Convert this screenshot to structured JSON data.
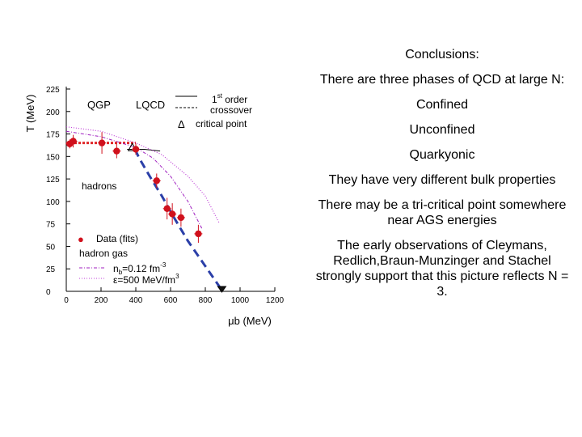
{
  "chart_data": {
    "type": "scatter",
    "xlabel": "μb (MeV)",
    "ylabel": "T (MeV)",
    "xlim": [
      0,
      1200
    ],
    "ylim": [
      0,
      225
    ],
    "xticks": [
      0,
      200,
      400,
      600,
      800,
      1000,
      1200
    ],
    "yticks": [
      0,
      25,
      50,
      75,
      100,
      125,
      150,
      175,
      200,
      225
    ],
    "region_labels": {
      "qgp": "QGP",
      "hadrons": "hadrons"
    },
    "legend_lqcd": {
      "title": "LQCD",
      "items": [
        {
          "label_main": "1",
          "label_sup": "st",
          "label_rest": " order"
        },
        {
          "label_main": "crossover"
        },
        {
          "marker": "Δ",
          "label_main": "critical point"
        }
      ]
    },
    "legend_data": {
      "marker": "●",
      "items": [
        {
          "label": "Data (fits)"
        },
        {
          "label": "hadron gas"
        },
        {
          "label": "nb=0.12 fm-3",
          "main": "n",
          "sub": "b",
          "mid": "=0.12 fm",
          "sup": "-3"
        },
        {
          "label": "ε=500 MeV/fm3",
          "main": "ε=500 MeV/fm",
          "sup": "3"
        }
      ]
    },
    "series": [
      {
        "kind": "points",
        "points": [
          {
            "x": 20,
            "y": 164,
            "err": 5
          },
          {
            "x": 40,
            "y": 167,
            "err": 7
          },
          {
            "x": 205,
            "y": 165,
            "err": 12
          },
          {
            "x": 290,
            "y": 156,
            "err": 8
          },
          {
            "x": 400,
            "y": 158,
            "err": 6
          },
          {
            "x": 520,
            "y": 123,
            "err": 8
          },
          {
            "x": 580,
            "y": 92,
            "err": 12
          },
          {
            "x": 610,
            "y": 86,
            "err": 12
          },
          {
            "x": 660,
            "y": 82,
            "err": 10
          },
          {
            "x": 760,
            "y": 64,
            "err": 10
          }
        ]
      },
      {
        "kind": "first_order",
        "x": [
          395,
          420,
          480,
          550,
          620,
          700,
          800,
          900
        ],
        "y": [
          158,
          148,
          128,
          106,
          82,
          56,
          28,
          0
        ]
      },
      {
        "kind": "crossover",
        "x": [
          0,
          150,
          300,
          400
        ],
        "y": [
          165,
          165,
          165,
          165
        ]
      },
      {
        "kind": "lqcd_solid",
        "x": [
          350,
          450,
          540
        ],
        "y": [
          158,
          158,
          156
        ]
      },
      {
        "kind": "critical_point",
        "x": 380,
        "y": 160
      },
      {
        "kind": "endpoint",
        "x": 895,
        "y": 0
      },
      {
        "kind": "nb_curve",
        "x": [
          0,
          200,
          400,
          500,
          600,
          700,
          780
        ],
        "y": [
          178,
          172,
          160,
          148,
          128,
          100,
          70
        ]
      },
      {
        "kind": "eps_curve",
        "x": [
          0,
          200,
          400,
          550,
          700,
          800,
          880
        ],
        "y": [
          183,
          178,
          165,
          152,
          128,
          106,
          76
        ]
      }
    ]
  },
  "conclusions": {
    "title": "Conclusions:",
    "items": [
      "There are three phases of QCD at large N:",
      "Confined",
      "Unconfined",
      "Quarkyonic",
      "They have very different bulk properties",
      "There may be a tri-critical point somewhere near AGS energies",
      "The early observations of Cleymans, Redlich,Braun-Munzinger and Stachel strongly support that this picture reflects N = 3."
    ]
  },
  "colors": {
    "data": "#d0101c",
    "first_order": "#2b3fa8",
    "crossover": "#e0282a",
    "lqcd": "#000000",
    "nb_curve": "#a020c0",
    "eps_curve": "#c040d8"
  }
}
